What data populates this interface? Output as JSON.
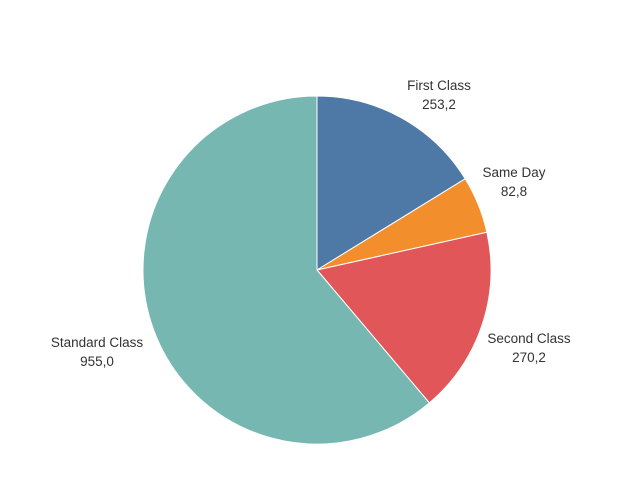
{
  "chart_data": {
    "type": "pie",
    "title": "",
    "slices": [
      {
        "label": "First Class",
        "value_text": "253,2",
        "value": 253.2,
        "color": "#4e79a7"
      },
      {
        "label": "Same Day",
        "value_text": "82,8",
        "value": 82.8,
        "color": "#f28e2b"
      },
      {
        "label": "Second Class",
        "value_text": "270,2",
        "value": 270.2,
        "color": "#e15759"
      },
      {
        "label": "Standard Class",
        "value_text": "955,0",
        "value": 955.0,
        "color": "#76b7b2"
      }
    ],
    "start_angle": "12 o'clock",
    "direction": "clockwise",
    "legend": "none"
  }
}
